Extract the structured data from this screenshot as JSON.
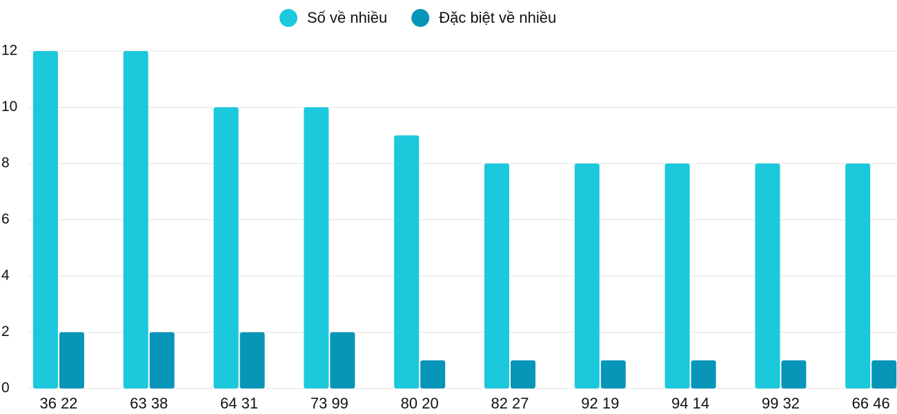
{
  "chart_data": {
    "type": "bar",
    "categories": [
      "36 22",
      "63 38",
      "64 31",
      "73 99",
      "80 20",
      "82 27",
      "92 19",
      "94 14",
      "99 32",
      "66 46"
    ],
    "series": [
      {
        "name": "Số về nhiều",
        "color": "#1bc8dc",
        "values": [
          12,
          12,
          10,
          10,
          9,
          8,
          8,
          8,
          8,
          8
        ]
      },
      {
        "name": "Đặc biệt về nhiều",
        "color": "#0795b8",
        "values": [
          2,
          2,
          2,
          2,
          1,
          1,
          1,
          1,
          1,
          1
        ]
      }
    ],
    "ylim": [
      0,
      12
    ],
    "yticks": [
      0,
      2,
      4,
      6,
      8,
      10,
      12
    ],
    "grid": true,
    "legend": "top"
  }
}
